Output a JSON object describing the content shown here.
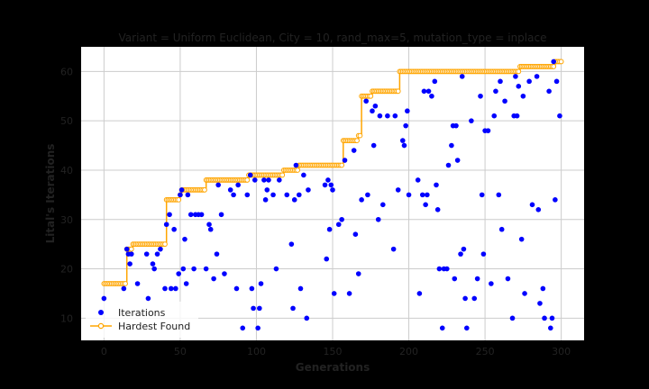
{
  "chart_data": {
    "type": "scatter",
    "title": "Variant = Uniform Euclidean, City = 10, rand_max=5, mutation_type = inplace",
    "xlabel": "Generations",
    "ylabel": "Lital's Iterations",
    "xlim": [
      -15,
      315
    ],
    "ylim": [
      5.5,
      65
    ],
    "xticks": [
      0,
      50,
      100,
      150,
      200,
      250,
      300
    ],
    "yticks": [
      10,
      20,
      30,
      40,
      50,
      60
    ],
    "grid": true,
    "legend_position": "lower-left",
    "colors": {
      "iterations": "#0000ff",
      "hardest": "#ffa500",
      "plot_bg": "#ffffff"
    },
    "series": [
      {
        "name": "Iterations",
        "kind": "scatter",
        "points": [
          [
            0,
            14
          ],
          [
            13,
            16
          ],
          [
            15,
            24
          ],
          [
            16,
            23
          ],
          [
            17,
            21
          ],
          [
            18,
            23
          ],
          [
            22,
            17
          ],
          [
            28,
            23
          ],
          [
            29,
            14
          ],
          [
            32,
            21
          ],
          [
            33,
            20
          ],
          [
            35,
            23
          ],
          [
            37,
            24
          ],
          [
            40,
            16
          ],
          [
            41,
            29
          ],
          [
            43,
            31
          ],
          [
            44,
            16
          ],
          [
            46,
            28
          ],
          [
            47,
            16
          ],
          [
            49,
            19
          ],
          [
            50,
            35
          ],
          [
            51,
            36
          ],
          [
            52,
            20
          ],
          [
            53,
            26
          ],
          [
            54,
            17
          ],
          [
            55,
            35
          ],
          [
            57,
            31
          ],
          [
            59,
            20
          ],
          [
            60,
            31
          ],
          [
            62,
            31
          ],
          [
            64,
            31
          ],
          [
            67,
            20
          ],
          [
            69,
            29
          ],
          [
            70,
            28
          ],
          [
            72,
            18
          ],
          [
            74,
            23
          ],
          [
            75,
            37
          ],
          [
            77,
            31
          ],
          [
            79,
            19
          ],
          [
            83,
            36
          ],
          [
            85,
            35
          ],
          [
            87,
            16
          ],
          [
            88,
            37
          ],
          [
            91,
            8
          ],
          [
            94,
            35
          ],
          [
            96,
            39
          ],
          [
            97,
            16
          ],
          [
            98,
            12
          ],
          [
            99,
            38
          ],
          [
            101,
            8
          ],
          [
            102,
            12
          ],
          [
            103,
            17
          ],
          [
            105,
            38
          ],
          [
            106,
            34
          ],
          [
            107,
            36
          ],
          [
            108,
            38
          ],
          [
            111,
            35
          ],
          [
            113,
            20
          ],
          [
            115,
            38
          ],
          [
            120,
            35
          ],
          [
            123,
            25
          ],
          [
            124,
            12
          ],
          [
            125,
            34
          ],
          [
            126,
            41
          ],
          [
            128,
            35
          ],
          [
            129,
            16
          ],
          [
            131,
            39
          ],
          [
            133,
            10
          ],
          [
            134,
            36
          ],
          [
            145,
            37
          ],
          [
            146,
            22
          ],
          [
            147,
            38
          ],
          [
            148,
            28
          ],
          [
            149,
            37
          ],
          [
            150,
            36
          ],
          [
            151,
            15
          ],
          [
            154,
            29
          ],
          [
            156,
            30
          ],
          [
            158,
            42
          ],
          [
            161,
            15
          ],
          [
            164,
            44
          ],
          [
            165,
            27
          ],
          [
            167,
            19
          ],
          [
            169,
            34
          ],
          [
            172,
            54
          ],
          [
            173,
            35
          ],
          [
            176,
            52
          ],
          [
            177,
            45
          ],
          [
            178,
            53
          ],
          [
            180,
            30
          ],
          [
            181,
            51
          ],
          [
            183,
            33
          ],
          [
            186,
            51
          ],
          [
            190,
            24
          ],
          [
            191,
            51
          ],
          [
            193,
            36
          ],
          [
            196,
            46
          ],
          [
            197,
            45
          ],
          [
            198,
            49
          ],
          [
            199,
            52
          ],
          [
            200,
            35
          ],
          [
            206,
            38
          ],
          [
            207,
            15
          ],
          [
            209,
            35
          ],
          [
            210,
            56
          ],
          [
            211,
            33
          ],
          [
            212,
            35
          ],
          [
            213,
            56
          ],
          [
            215,
            55
          ],
          [
            217,
            58
          ],
          [
            218,
            37
          ],
          [
            219,
            32
          ],
          [
            220,
            20
          ],
          [
            222,
            8
          ],
          [
            223,
            20
          ],
          [
            225,
            20
          ],
          [
            226,
            41
          ],
          [
            228,
            45
          ],
          [
            229,
            49
          ],
          [
            230,
            18
          ],
          [
            231,
            49
          ],
          [
            232,
            42
          ],
          [
            234,
            23
          ],
          [
            235,
            59
          ],
          [
            236,
            24
          ],
          [
            237,
            14
          ],
          [
            238,
            8
          ],
          [
            241,
            50
          ],
          [
            243,
            14
          ],
          [
            245,
            18
          ],
          [
            247,
            55
          ],
          [
            248,
            35
          ],
          [
            249,
            23
          ],
          [
            250,
            48
          ],
          [
            252,
            48
          ],
          [
            254,
            17
          ],
          [
            256,
            51
          ],
          [
            257,
            56
          ],
          [
            259,
            35
          ],
          [
            260,
            58
          ],
          [
            261,
            28
          ],
          [
            263,
            54
          ],
          [
            265,
            18
          ],
          [
            268,
            10
          ],
          [
            269,
            51
          ],
          [
            270,
            59
          ],
          [
            271,
            51
          ],
          [
            272,
            57
          ],
          [
            274,
            26
          ],
          [
            275,
            55
          ],
          [
            276,
            15
          ],
          [
            279,
            58
          ],
          [
            281,
            33
          ],
          [
            284,
            59
          ],
          [
            285,
            32
          ],
          [
            286,
            13
          ],
          [
            288,
            16
          ],
          [
            289,
            10
          ],
          [
            292,
            56
          ],
          [
            293,
            8
          ],
          [
            294,
            10
          ],
          [
            295,
            62
          ],
          [
            296,
            34
          ],
          [
            297,
            58
          ],
          [
            299,
            51
          ]
        ]
      },
      {
        "name": "Hardest Found",
        "kind": "step-line",
        "steps": [
          [
            0,
            17
          ],
          [
            15,
            17
          ],
          [
            15,
            24
          ],
          [
            19,
            24
          ],
          [
            19,
            25
          ],
          [
            41,
            25
          ],
          [
            41,
            34
          ],
          [
            50,
            34
          ],
          [
            50,
            35
          ],
          [
            51,
            35
          ],
          [
            51,
            36
          ],
          [
            67,
            36
          ],
          [
            67,
            38
          ],
          [
            95,
            38
          ],
          [
            95,
            39
          ],
          [
            118,
            39
          ],
          [
            118,
            40
          ],
          [
            128,
            40
          ],
          [
            128,
            41
          ],
          [
            157,
            41
          ],
          [
            157,
            46
          ],
          [
            167,
            46
          ],
          [
            167,
            47
          ],
          [
            169,
            47
          ],
          [
            169,
            55
          ],
          [
            176,
            55
          ],
          [
            176,
            56
          ],
          [
            194,
            56
          ],
          [
            194,
            60
          ],
          [
            273,
            60
          ],
          [
            273,
            61
          ],
          [
            296,
            61
          ],
          [
            296,
            62
          ],
          [
            300,
            62
          ]
        ]
      }
    ]
  }
}
